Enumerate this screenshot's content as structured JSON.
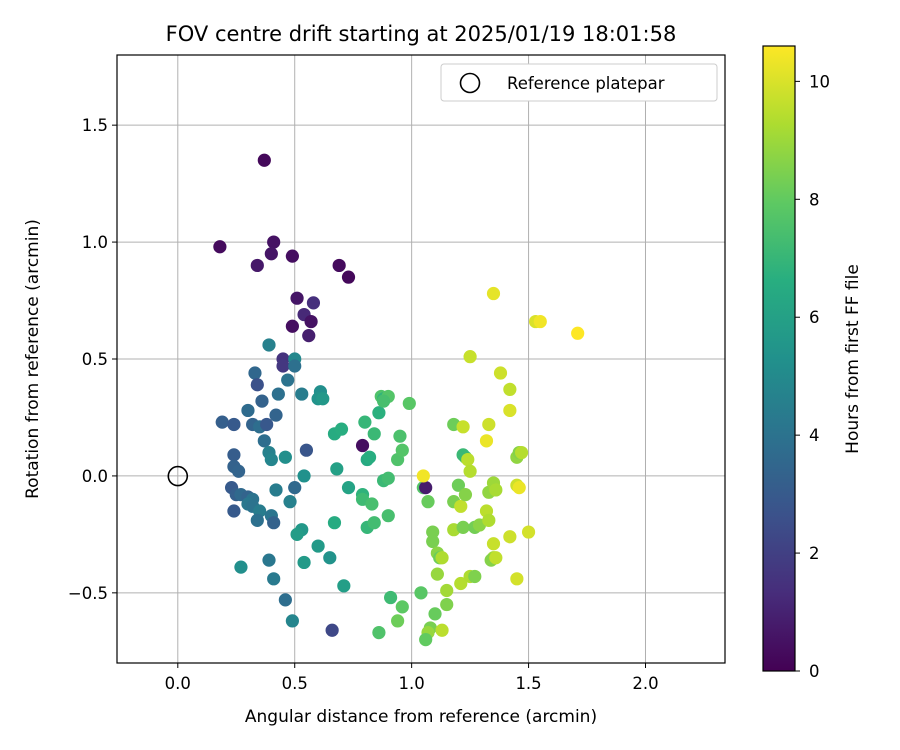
{
  "chart_data": {
    "type": "scatter",
    "title": "FOV centre drift starting at 2025/01/19 18:01:58",
    "xlabel": "Angular distance from reference (arcmin)",
    "ylabel": "Rotation from reference (arcmin)",
    "xlim": [
      -0.26,
      2.34
    ],
    "ylim": [
      -0.8,
      1.8
    ],
    "xticks": [
      0.0,
      0.5,
      1.0,
      1.5,
      2.0
    ],
    "xtick_labels": [
      "0.0",
      "0.5",
      "1.0",
      "1.5",
      "2.0"
    ],
    "yticks": [
      -0.5,
      0.0,
      0.5,
      1.0,
      1.5
    ],
    "ytick_labels": [
      "−0.5",
      "0.0",
      "0.5",
      "1.0",
      "1.5"
    ],
    "grid": true,
    "legend": {
      "placement": "top-right",
      "entries": [
        "Reference platepar"
      ]
    },
    "reference_point": {
      "x": 0.0,
      "y": 0.0,
      "marker": "open-circle"
    },
    "colorbar": {
      "label": "Hours from first FF file",
      "colormap": "viridis",
      "range": [
        0,
        10.6
      ],
      "ticks": [
        0,
        2,
        4,
        6,
        8,
        10
      ],
      "tick_labels": [
        "0",
        "2",
        "4",
        "6",
        "8",
        "10"
      ]
    },
    "points": [
      {
        "x": 0.37,
        "y": 1.35,
        "h": 0.2
      },
      {
        "x": 0.18,
        "y": 0.98,
        "h": 0.3
      },
      {
        "x": 0.41,
        "y": 1.0,
        "h": 0.5
      },
      {
        "x": 0.4,
        "y": 0.95,
        "h": 0.6
      },
      {
        "x": 0.49,
        "y": 0.94,
        "h": 0.4
      },
      {
        "x": 0.34,
        "y": 0.9,
        "h": 0.7
      },
      {
        "x": 0.69,
        "y": 0.9,
        "h": 0.3
      },
      {
        "x": 0.73,
        "y": 0.85,
        "h": 0.2
      },
      {
        "x": 0.51,
        "y": 0.76,
        "h": 0.6
      },
      {
        "x": 0.58,
        "y": 0.74,
        "h": 1.4
      },
      {
        "x": 0.54,
        "y": 0.69,
        "h": 1.2
      },
      {
        "x": 0.57,
        "y": 0.66,
        "h": 0.5
      },
      {
        "x": 0.49,
        "y": 0.64,
        "h": 0.4
      },
      {
        "x": 0.56,
        "y": 0.6,
        "h": 0.9
      },
      {
        "x": 0.39,
        "y": 0.56,
        "h": 4.6
      },
      {
        "x": 0.45,
        "y": 0.5,
        "h": 1.5
      },
      {
        "x": 0.5,
        "y": 0.5,
        "h": 4.9
      },
      {
        "x": 0.45,
        "y": 0.47,
        "h": 1.7
      },
      {
        "x": 0.5,
        "y": 0.47,
        "h": 3.9
      },
      {
        "x": 0.33,
        "y": 0.44,
        "h": 3.5
      },
      {
        "x": 0.47,
        "y": 0.41,
        "h": 4.0
      },
      {
        "x": 0.34,
        "y": 0.39,
        "h": 2.6
      },
      {
        "x": 0.43,
        "y": 0.35,
        "h": 3.9
      },
      {
        "x": 0.53,
        "y": 0.35,
        "h": 4.4
      },
      {
        "x": 0.61,
        "y": 0.36,
        "h": 5.2
      },
      {
        "x": 0.6,
        "y": 0.33,
        "h": 5.4
      },
      {
        "x": 0.62,
        "y": 0.33,
        "h": 5.6
      },
      {
        "x": 0.36,
        "y": 0.32,
        "h": 3.3
      },
      {
        "x": 0.3,
        "y": 0.28,
        "h": 3.7
      },
      {
        "x": 0.42,
        "y": 0.26,
        "h": 3.4
      },
      {
        "x": 0.19,
        "y": 0.23,
        "h": 3.2
      },
      {
        "x": 0.24,
        "y": 0.22,
        "h": 3.0
      },
      {
        "x": 0.32,
        "y": 0.22,
        "h": 3.4
      },
      {
        "x": 0.35,
        "y": 0.21,
        "h": 3.8
      },
      {
        "x": 0.38,
        "y": 0.22,
        "h": 2.9
      },
      {
        "x": 0.37,
        "y": 0.15,
        "h": 3.8
      },
      {
        "x": 0.55,
        "y": 0.11,
        "h": 2.8
      },
      {
        "x": 0.39,
        "y": 0.1,
        "h": 4.6
      },
      {
        "x": 0.24,
        "y": 0.09,
        "h": 3.1
      },
      {
        "x": 0.4,
        "y": 0.07,
        "h": 4.8
      },
      {
        "x": 0.46,
        "y": 0.08,
        "h": 5.2
      },
      {
        "x": 0.24,
        "y": 0.04,
        "h": 3.3
      },
      {
        "x": 0.26,
        "y": 0.02,
        "h": 3.4
      },
      {
        "x": 0.54,
        "y": 0.0,
        "h": 5.3
      },
      {
        "x": 0.5,
        "y": -0.05,
        "h": 3.6
      },
      {
        "x": 0.42,
        "y": -0.06,
        "h": 4.4
      },
      {
        "x": 0.23,
        "y": -0.05,
        "h": 3.0
      },
      {
        "x": 0.25,
        "y": -0.08,
        "h": 3.2
      },
      {
        "x": 0.27,
        "y": -0.08,
        "h": 3.6
      },
      {
        "x": 0.3,
        "y": -0.09,
        "h": 3.4
      },
      {
        "x": 0.32,
        "y": -0.1,
        "h": 4.0
      },
      {
        "x": 0.48,
        "y": -0.11,
        "h": 4.6
      },
      {
        "x": 0.3,
        "y": -0.12,
        "h": 4.2
      },
      {
        "x": 0.32,
        "y": -0.13,
        "h": 4.0
      },
      {
        "x": 0.24,
        "y": -0.15,
        "h": 3.0
      },
      {
        "x": 0.35,
        "y": -0.15,
        "h": 4.4
      },
      {
        "x": 0.4,
        "y": -0.17,
        "h": 4.1
      },
      {
        "x": 0.34,
        "y": -0.19,
        "h": 3.9
      },
      {
        "x": 0.41,
        "y": -0.2,
        "h": 3.3
      },
      {
        "x": 0.53,
        "y": -0.23,
        "h": 5.6
      },
      {
        "x": 0.51,
        "y": -0.25,
        "h": 5.8
      },
      {
        "x": 0.6,
        "y": -0.3,
        "h": 5.7
      },
      {
        "x": 0.65,
        "y": -0.35,
        "h": 5.4
      },
      {
        "x": 0.54,
        "y": -0.37,
        "h": 5.7
      },
      {
        "x": 0.39,
        "y": -0.36,
        "h": 4.2
      },
      {
        "x": 0.27,
        "y": -0.39,
        "h": 5.2
      },
      {
        "x": 0.41,
        "y": -0.44,
        "h": 4.3
      },
      {
        "x": 0.46,
        "y": -0.53,
        "h": 3.8
      },
      {
        "x": 0.49,
        "y": -0.62,
        "h": 4.8
      },
      {
        "x": 0.71,
        "y": -0.47,
        "h": 5.9
      },
      {
        "x": 0.66,
        "y": -0.66,
        "h": 2.3
      },
      {
        "x": 0.67,
        "y": 0.18,
        "h": 6.5
      },
      {
        "x": 0.7,
        "y": 0.2,
        "h": 6.6
      },
      {
        "x": 0.79,
        "y": 0.13,
        "h": 0.4
      },
      {
        "x": 0.81,
        "y": 0.07,
        "h": 6.4
      },
      {
        "x": 0.68,
        "y": 0.03,
        "h": 6.0
      },
      {
        "x": 0.73,
        "y": -0.05,
        "h": 6.1
      },
      {
        "x": 0.79,
        "y": -0.08,
        "h": 6.8
      },
      {
        "x": 0.79,
        "y": -0.1,
        "h": 7.2
      },
      {
        "x": 0.83,
        "y": -0.12,
        "h": 7.4
      },
      {
        "x": 0.67,
        "y": -0.2,
        "h": 6.5
      },
      {
        "x": 0.81,
        "y": -0.22,
        "h": 7.0
      },
      {
        "x": 0.84,
        "y": -0.2,
        "h": 7.3
      },
      {
        "x": 0.8,
        "y": 0.23,
        "h": 7.0
      },
      {
        "x": 0.84,
        "y": 0.18,
        "h": 7.1
      },
      {
        "x": 0.82,
        "y": 0.08,
        "h": 6.6
      },
      {
        "x": 0.86,
        "y": 0.27,
        "h": 6.7
      },
      {
        "x": 0.87,
        "y": 0.34,
        "h": 7.6
      },
      {
        "x": 0.88,
        "y": 0.33,
        "h": 6.9
      },
      {
        "x": 0.9,
        "y": 0.34,
        "h": 7.7
      },
      {
        "x": 0.88,
        "y": 0.32,
        "h": 7.4
      },
      {
        "x": 0.99,
        "y": 0.31,
        "h": 7.8
      },
      {
        "x": 0.95,
        "y": 0.17,
        "h": 7.5
      },
      {
        "x": 0.94,
        "y": 0.07,
        "h": 7.6
      },
      {
        "x": 0.96,
        "y": 0.11,
        "h": 7.7
      },
      {
        "x": 0.88,
        "y": -0.02,
        "h": 7.1
      },
      {
        "x": 0.9,
        "y": -0.01,
        "h": 7.3
      },
      {
        "x": 0.9,
        "y": -0.17,
        "h": 7.4
      },
      {
        "x": 0.91,
        "y": -0.52,
        "h": 7.2
      },
      {
        "x": 0.96,
        "y": -0.56,
        "h": 7.9
      },
      {
        "x": 0.94,
        "y": -0.62,
        "h": 8.2
      },
      {
        "x": 0.86,
        "y": -0.67,
        "h": 7.6
      },
      {
        "x": 1.05,
        "y": -0.05,
        "h": 7.7
      },
      {
        "x": 1.06,
        "y": -0.05,
        "h": 0.8
      },
      {
        "x": 1.07,
        "y": -0.11,
        "h": 8.1
      },
      {
        "x": 1.05,
        "y": 0.0,
        "h": 10.4
      },
      {
        "x": 1.04,
        "y": -0.5,
        "h": 7.8
      },
      {
        "x": 1.09,
        "y": -0.24,
        "h": 8.4
      },
      {
        "x": 1.09,
        "y": -0.28,
        "h": 8.4
      },
      {
        "x": 1.11,
        "y": -0.33,
        "h": 8.7
      },
      {
        "x": 1.12,
        "y": -0.35,
        "h": 8.2
      },
      {
        "x": 1.13,
        "y": -0.35,
        "h": 9.3
      },
      {
        "x": 1.11,
        "y": -0.42,
        "h": 8.9
      },
      {
        "x": 1.1,
        "y": -0.59,
        "h": 8.1
      },
      {
        "x": 1.08,
        "y": -0.65,
        "h": 8.4
      },
      {
        "x": 1.07,
        "y": -0.67,
        "h": 8.9
      },
      {
        "x": 1.06,
        "y": -0.7,
        "h": 8.0
      },
      {
        "x": 1.13,
        "y": -0.66,
        "h": 9.5
      },
      {
        "x": 1.15,
        "y": -0.49,
        "h": 9.1
      },
      {
        "x": 1.15,
        "y": -0.55,
        "h": 8.5
      },
      {
        "x": 1.18,
        "y": -0.11,
        "h": 8.4
      },
      {
        "x": 1.18,
        "y": -0.23,
        "h": 9.2
      },
      {
        "x": 1.21,
        "y": -0.46,
        "h": 9.4
      },
      {
        "x": 1.21,
        "y": -0.13,
        "h": 9.6
      },
      {
        "x": 1.2,
        "y": -0.04,
        "h": 8.2
      },
      {
        "x": 1.23,
        "y": -0.08,
        "h": 8.6
      },
      {
        "x": 1.22,
        "y": -0.22,
        "h": 8.4
      },
      {
        "x": 1.18,
        "y": 0.22,
        "h": 8.2
      },
      {
        "x": 1.22,
        "y": 0.21,
        "h": 9.7
      },
      {
        "x": 1.23,
        "y": 0.08,
        "h": 7.8
      },
      {
        "x": 1.22,
        "y": 0.09,
        "h": 7.1
      },
      {
        "x": 1.24,
        "y": 0.07,
        "h": 9.5
      },
      {
        "x": 1.25,
        "y": 0.02,
        "h": 9.4
      },
      {
        "x": 1.25,
        "y": -0.43,
        "h": 9.3
      },
      {
        "x": 1.27,
        "y": -0.43,
        "h": 8.5
      },
      {
        "x": 1.27,
        "y": -0.22,
        "h": 8.3
      },
      {
        "x": 1.29,
        "y": -0.21,
        "h": 8.7
      },
      {
        "x": 1.25,
        "y": 0.51,
        "h": 9.7
      },
      {
        "x": 1.33,
        "y": 0.22,
        "h": 9.8
      },
      {
        "x": 1.32,
        "y": 0.15,
        "h": 10.3
      },
      {
        "x": 1.32,
        "y": -0.15,
        "h": 9.5
      },
      {
        "x": 1.33,
        "y": -0.07,
        "h": 8.8
      },
      {
        "x": 1.35,
        "y": -0.03,
        "h": 9.0
      },
      {
        "x": 1.36,
        "y": -0.06,
        "h": 9.2
      },
      {
        "x": 1.33,
        "y": -0.19,
        "h": 9.3
      },
      {
        "x": 1.35,
        "y": -0.29,
        "h": 9.7
      },
      {
        "x": 1.35,
        "y": -0.35,
        "h": 9.1
      },
      {
        "x": 1.34,
        "y": -0.36,
        "h": 8.6
      },
      {
        "x": 1.36,
        "y": -0.35,
        "h": 9.6
      },
      {
        "x": 1.38,
        "y": 0.44,
        "h": 9.8
      },
      {
        "x": 1.35,
        "y": 0.78,
        "h": 10.2
      },
      {
        "x": 1.42,
        "y": 0.37,
        "h": 9.6
      },
      {
        "x": 1.42,
        "y": 0.28,
        "h": 10.0
      },
      {
        "x": 1.42,
        "y": -0.26,
        "h": 9.8
      },
      {
        "x": 1.45,
        "y": -0.44,
        "h": 9.9
      },
      {
        "x": 1.45,
        "y": -0.04,
        "h": 9.8
      },
      {
        "x": 1.46,
        "y": -0.05,
        "h": 10.3
      },
      {
        "x": 1.45,
        "y": 0.08,
        "h": 8.8
      },
      {
        "x": 1.46,
        "y": 0.1,
        "h": 8.6
      },
      {
        "x": 1.47,
        "y": 0.1,
        "h": 9.4
      },
      {
        "x": 1.5,
        "y": -0.24,
        "h": 9.9
      },
      {
        "x": 1.53,
        "y": 0.66,
        "h": 10.0
      },
      {
        "x": 1.55,
        "y": 0.66,
        "h": 10.4
      },
      {
        "x": 1.71,
        "y": 0.61,
        "h": 10.6
      }
    ]
  }
}
